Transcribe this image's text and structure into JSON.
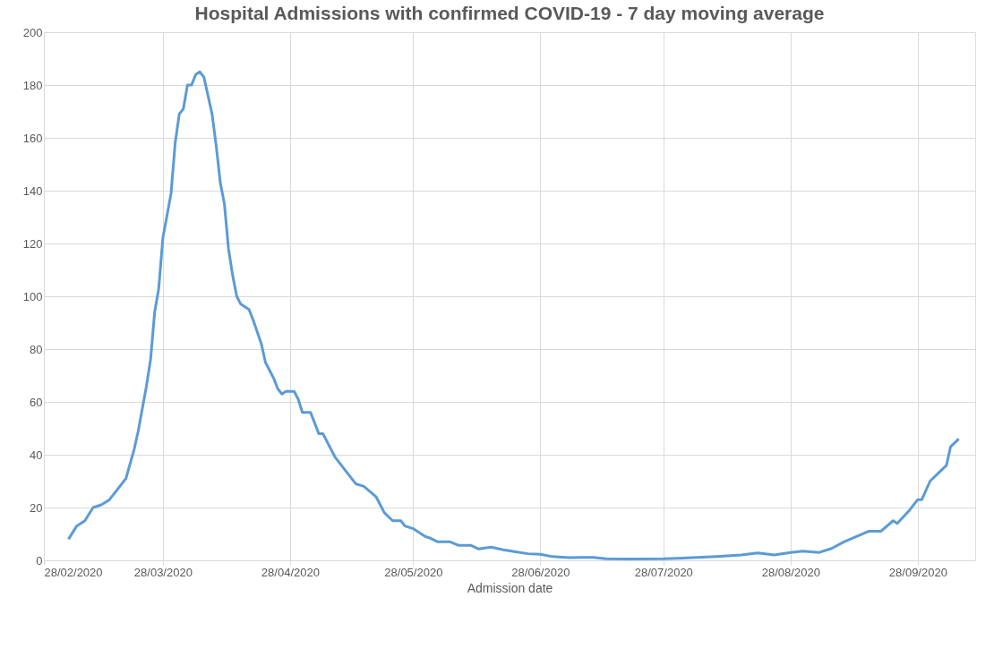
{
  "chart_data": {
    "type": "line",
    "title": "Hospital Admissions with confirmed COVID-19 - 7 day moving average",
    "xlabel": "Admission date",
    "x": [
      "2020-03-05",
      "2020-03-07",
      "2020-03-09",
      "2020-03-11",
      "2020-03-13",
      "2020-03-15",
      "2020-03-17",
      "2020-03-19",
      "2020-03-21",
      "2020-03-22",
      "2020-03-24",
      "2020-03-25",
      "2020-03-26",
      "2020-03-27",
      "2020-03-28",
      "2020-03-30",
      "2020-03-31",
      "2020-04-01",
      "2020-04-02",
      "2020-04-03",
      "2020-04-04",
      "2020-04-05",
      "2020-04-06",
      "2020-04-07",
      "2020-04-08",
      "2020-04-09",
      "2020-04-10",
      "2020-04-11",
      "2020-04-12",
      "2020-04-13",
      "2020-04-14",
      "2020-04-15",
      "2020-04-16",
      "2020-04-18",
      "2020-04-19",
      "2020-04-21",
      "2020-04-22",
      "2020-04-24",
      "2020-04-25",
      "2020-04-26",
      "2020-04-27",
      "2020-04-29",
      "2020-04-30",
      "2020-05-01",
      "2020-05-03",
      "2020-05-05",
      "2020-05-06",
      "2020-05-09",
      "2020-05-12",
      "2020-05-14",
      "2020-05-16",
      "2020-05-19",
      "2020-05-21",
      "2020-05-23",
      "2020-05-25",
      "2020-05-26",
      "2020-05-28",
      "2020-05-31",
      "2020-06-01",
      "2020-06-03",
      "2020-06-06",
      "2020-06-08",
      "2020-06-11",
      "2020-06-13",
      "2020-06-16",
      "2020-06-19",
      "2020-06-22",
      "2020-06-25",
      "2020-06-28",
      "2020-07-01",
      "2020-07-05",
      "2020-07-08",
      "2020-07-11",
      "2020-07-14",
      "2020-07-19",
      "2020-07-28",
      "2020-08-04",
      "2020-08-10",
      "2020-08-16",
      "2020-08-20",
      "2020-08-24",
      "2020-08-28",
      "2020-08-31",
      "2020-09-04",
      "2020-09-07",
      "2020-09-10",
      "2020-09-16",
      "2020-09-19",
      "2020-09-22",
      "2020-09-23",
      "2020-09-26",
      "2020-09-28",
      "2020-09-29",
      "2020-10-01",
      "2020-10-03",
      "2020-10-05",
      "2020-10-06",
      "2020-10-08"
    ],
    "series": [
      {
        "color": "#5b9bd5",
        "values": [
          8,
          13,
          15,
          20,
          21,
          23,
          27,
          31,
          42,
          49,
          66,
          76,
          94,
          103,
          122,
          139,
          158,
          169,
          171,
          180,
          180,
          184,
          185,
          183,
          176,
          169,
          157,
          143,
          135,
          118,
          108,
          100,
          97,
          95,
          91,
          82,
          75,
          69,
          65,
          63,
          64,
          64,
          61,
          56,
          56,
          48,
          48,
          39,
          33,
          29,
          28,
          24,
          18,
          15,
          15,
          13,
          12,
          9,
          8.5,
          7,
          7,
          5.7,
          5.7,
          4.3,
          5,
          4,
          3.2,
          2.5,
          2.3,
          1.4,
          1,
          1.1,
          1.1,
          0.6,
          0.5,
          0.6,
          1,
          1.4,
          2,
          2.8,
          2,
          3,
          3.5,
          3,
          4.5,
          7,
          11,
          11,
          15,
          14,
          19,
          23,
          23,
          30,
          33,
          36,
          43,
          46
        ]
      }
    ],
    "xlim": [
      "2020-02-28",
      "2020-10-12"
    ],
    "xticks": [
      {
        "value": "2020-02-28",
        "label": "28/02/2020"
      },
      {
        "value": "2020-03-28",
        "label": "28/03/2020"
      },
      {
        "value": "2020-04-28",
        "label": "28/04/2020"
      },
      {
        "value": "2020-05-28",
        "label": "28/05/2020"
      },
      {
        "value": "2020-06-28",
        "label": "28/06/2020"
      },
      {
        "value": "2020-07-28",
        "label": "28/07/2020"
      },
      {
        "value": "2020-08-28",
        "label": "28/08/2020"
      },
      {
        "value": "2020-09-28",
        "label": "28/09/2020"
      }
    ],
    "ylim": [
      0,
      200
    ],
    "yticks": [
      0,
      20,
      40,
      60,
      80,
      100,
      120,
      140,
      160,
      180,
      200
    ],
    "grid": true,
    "marker": "none",
    "line_style": "solid"
  }
}
